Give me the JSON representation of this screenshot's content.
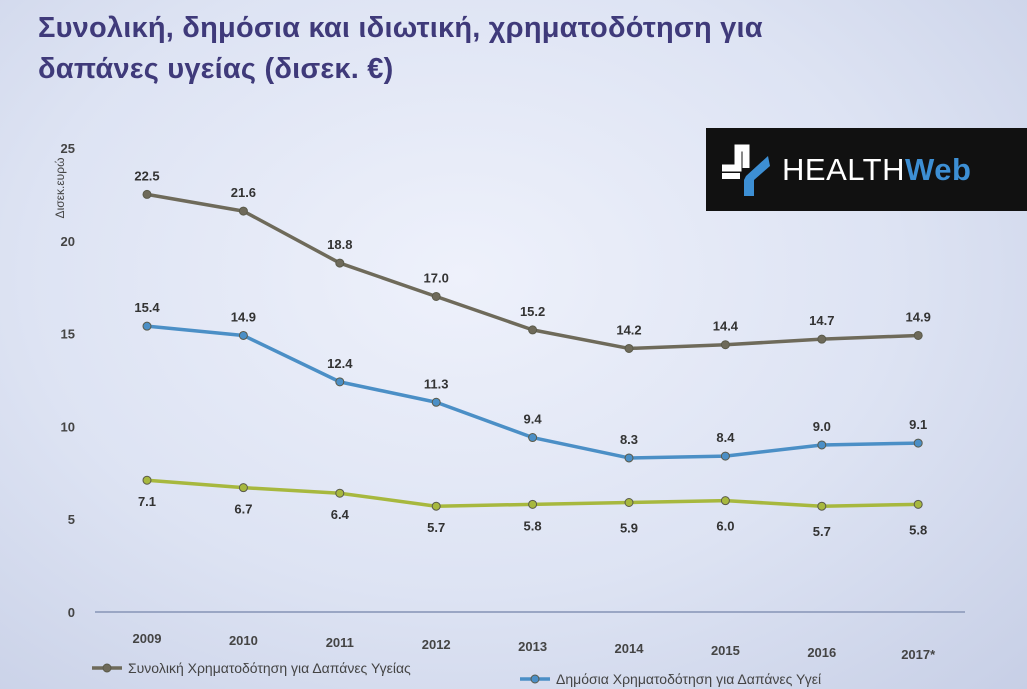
{
  "title": "Συνολική, δημόσια και ιδιωτική, χρηματοδότηση για δαπάνες υγείας (δισεκ. €)",
  "logo": {
    "text_a": "HEALTH",
    "text_b": "Web"
  },
  "chart_data": {
    "type": "line",
    "title": "Συνολική, δημόσια και ιδιωτική, χρηματοδότηση για δαπάνες υγείας (δισεκ. €)",
    "ylabel": "Δισεκ.ευρώ",
    "xlabel": "",
    "ylim": [
      0,
      25
    ],
    "yticks": [
      0,
      5,
      10,
      15,
      20,
      25
    ],
    "categories": [
      "2009",
      "2010",
      "2011",
      "2012",
      "2013",
      "2014",
      "2015",
      "2016",
      "2017*"
    ],
    "grid": false,
    "legend_position": "bottom",
    "series": [
      {
        "name": "Συνολική Χρηματοδότηση για Δαπάνες Υγείας",
        "color": "#6e6a5a",
        "values": [
          22.5,
          21.6,
          18.8,
          17.0,
          15.2,
          14.2,
          14.4,
          14.7,
          14.9
        ]
      },
      {
        "name": "Δημόσια Χρηματοδότηση για Δαπάνες Υγείας",
        "color": "#4b8fc6",
        "values": [
          15.4,
          14.9,
          12.4,
          11.3,
          9.4,
          8.3,
          8.4,
          9.0,
          9.1
        ]
      },
      {
        "name": "",
        "color": "#a7b83e",
        "values": [
          7.1,
          6.7,
          6.4,
          5.7,
          5.8,
          5.9,
          6.0,
          5.7,
          5.8
        ]
      }
    ],
    "legend": [
      {
        "label": "Συνολική Χρηματοδότηση για Δαπάνες Υγείας",
        "color": "#6e6a5a"
      },
      {
        "label": "Δημόσια Χρηματοδότηση για Δαπάνες Υγεί",
        "color": "#4b8fc6"
      }
    ]
  }
}
